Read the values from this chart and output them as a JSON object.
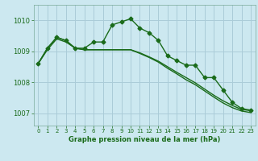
{
  "xlabel": "Graphe pression niveau de la mer (hPa)",
  "ylim": [
    1006.6,
    1010.5
  ],
  "xlim": [
    -0.5,
    23.5
  ],
  "yticks": [
    1007,
    1008,
    1009,
    1010
  ],
  "xticks": [
    0,
    1,
    2,
    3,
    4,
    5,
    6,
    7,
    8,
    9,
    10,
    11,
    12,
    13,
    14,
    15,
    16,
    17,
    18,
    19,
    20,
    21,
    22,
    23
  ],
  "background_color": "#cce8f0",
  "grid_color": "#aaccd8",
  "line_color": "#1a6b1a",
  "series": [
    {
      "x": [
        0,
        1,
        2,
        3,
        4,
        5,
        6,
        7,
        8,
        9,
        10,
        11,
        12,
        13,
        14,
        15,
        16,
        17,
        18,
        19,
        20,
        21,
        22,
        23
      ],
      "y": [
        1008.6,
        1009.1,
        1009.45,
        1009.35,
        1009.1,
        1009.1,
        1009.3,
        1009.3,
        1009.85,
        1009.95,
        1010.05,
        1009.75,
        1009.6,
        1009.35,
        1008.85,
        1008.7,
        1008.55,
        1008.55,
        1008.15,
        1008.15,
        1007.75,
        1007.35,
        1007.15,
        1007.1
      ],
      "marker": "D",
      "markersize": 2.5,
      "linewidth": 1.0
    },
    {
      "x": [
        0,
        1,
        2,
        3,
        4,
        5,
        6,
        7,
        8,
        9,
        10,
        11,
        12,
        13,
        14,
        15,
        16,
        17,
        18,
        19,
        20,
        21,
        22,
        23
      ],
      "y": [
        1008.6,
        1009.1,
        1009.45,
        1009.35,
        1009.1,
        1009.05,
        1009.05,
        1009.05,
        1009.05,
        1009.05,
        1009.05,
        1008.95,
        1008.82,
        1008.68,
        1008.5,
        1008.32,
        1008.15,
        1007.98,
        1007.78,
        1007.58,
        1007.4,
        1007.25,
        1007.12,
        1007.08
      ],
      "marker": null,
      "markersize": 0,
      "linewidth": 1.0
    },
    {
      "x": [
        0,
        1,
        2,
        3,
        4,
        5,
        6,
        7,
        8,
        9,
        10,
        11,
        12,
        13,
        14,
        15,
        16,
        17,
        18,
        19,
        20,
        21,
        22,
        23
      ],
      "y": [
        1008.6,
        1009.05,
        1009.4,
        1009.3,
        1009.1,
        1009.05,
        1009.05,
        1009.05,
        1009.05,
        1009.05,
        1009.05,
        1008.93,
        1008.8,
        1008.65,
        1008.45,
        1008.27,
        1008.08,
        1007.92,
        1007.72,
        1007.52,
        1007.33,
        1007.18,
        1007.07,
        1007.02
      ],
      "marker": null,
      "markersize": 0,
      "linewidth": 1.0
    }
  ]
}
